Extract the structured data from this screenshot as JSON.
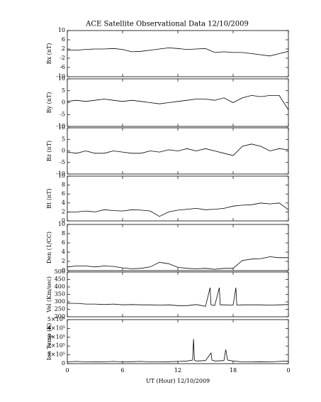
{
  "chart_data": [
    {
      "type": "line",
      "title": "ACE Satellite Observational Data   12/10/2009",
      "ylabel": "Bx (nT)",
      "x": [
        0,
        1,
        2,
        3,
        4,
        5,
        6,
        7,
        8,
        9,
        10,
        11,
        12,
        13,
        14,
        15,
        16,
        17,
        18,
        19,
        20,
        21,
        22,
        23,
        24
      ],
      "series": [
        {
          "name": "Bx",
          "color": "#000000",
          "values": [
            1.5,
            1.5,
            1.8,
            2,
            2,
            2.2,
            1.8,
            0.8,
            1,
            1.5,
            2,
            2.5,
            2.2,
            1.8,
            2,
            2.2,
            0.5,
            0.8,
            0.5,
            0.5,
            0,
            -0.5,
            -1,
            0,
            1
          ]
        }
      ],
      "xlim": [
        0,
        24
      ],
      "ylim": [
        -10,
        10
      ],
      "yticks": [
        10,
        6,
        2,
        -2,
        -6,
        -10
      ]
    },
    {
      "type": "line",
      "ylabel": "By (nT)",
      "x": [
        0,
        1,
        2,
        3,
        4,
        5,
        6,
        7,
        8,
        9,
        10,
        11,
        12,
        13,
        14,
        15,
        16,
        17,
        18,
        19,
        20,
        21,
        22,
        23,
        24
      ],
      "series": [
        {
          "name": "By",
          "color": "#000000",
          "values": [
            0.5,
            1,
            0.5,
            1,
            1.5,
            1,
            0.5,
            1,
            0.5,
            0,
            -0.5,
            0,
            0.5,
            1,
            1.5,
            1.5,
            1,
            2,
            0,
            2,
            3,
            2.5,
            3,
            3,
            -3
          ]
        }
      ],
      "xlim": [
        0,
        24
      ],
      "ylim": [
        -10,
        10
      ],
      "yticks": [
        10,
        5,
        0,
        -5,
        -10
      ]
    },
    {
      "type": "line",
      "ylabel": "Bz (nT)",
      "x": [
        0,
        1,
        2,
        3,
        4,
        5,
        6,
        7,
        8,
        9,
        10,
        11,
        12,
        13,
        14,
        15,
        16,
        17,
        18,
        19,
        20,
        21,
        22,
        23,
        24
      ],
      "series": [
        {
          "name": "Bz",
          "color": "#000000",
          "values": [
            -0.5,
            -1,
            0,
            -1,
            -1,
            0,
            -0.5,
            -1,
            -1,
            0,
            -0.5,
            0.5,
            0,
            1,
            0,
            1,
            0,
            -1,
            -2,
            2,
            3,
            2,
            0,
            1,
            0.5
          ]
        }
      ],
      "xlim": [
        0,
        24
      ],
      "ylim": [
        -10,
        10
      ],
      "yticks": [
        10,
        5,
        0,
        -5,
        -10
      ]
    },
    {
      "type": "line",
      "ylabel": "Bt (nT)",
      "x": [
        0,
        1,
        2,
        3,
        4,
        5,
        6,
        7,
        8,
        9,
        10,
        11,
        12,
        13,
        14,
        15,
        16,
        17,
        18,
        19,
        20,
        21,
        22,
        23,
        24
      ],
      "series": [
        {
          "name": "Bt",
          "color": "#000000",
          "values": [
            2,
            2,
            2.2,
            2,
            2.5,
            2.3,
            2.2,
            2.5,
            2.4,
            2.2,
            1,
            2,
            2.4,
            2.6,
            2.8,
            2.5,
            2.6,
            2.8,
            3.3,
            3.5,
            3.6,
            4,
            3.8,
            4,
            2.5
          ]
        }
      ],
      "xlim": [
        0,
        24
      ],
      "ylim": [
        0,
        10
      ],
      "yticks": [
        0,
        2,
        4,
        6,
        8,
        10
      ]
    },
    {
      "type": "line",
      "ylabel": "Den (1/CC)",
      "x": [
        0,
        1,
        2,
        3,
        4,
        5,
        6,
        7,
        8,
        9,
        10,
        11,
        12,
        13,
        14,
        15,
        16,
        17,
        18,
        19,
        20,
        21,
        22,
        23,
        24
      ],
      "series": [
        {
          "name": "Den",
          "color": "#000000",
          "values": [
            0.8,
            1,
            1,
            0.8,
            1,
            0.9,
            0.6,
            0.4,
            0.5,
            0.8,
            1.8,
            1.5,
            0.7,
            0.5,
            0.4,
            0.5,
            0.3,
            0.5,
            0.5,
            2.2,
            2.5,
            2.6,
            3,
            2.8,
            2.8
          ]
        }
      ],
      "xlim": [
        0,
        24
      ],
      "ylim": [
        0,
        10
      ],
      "yticks": [
        0,
        2,
        4,
        6,
        8,
        10
      ]
    },
    {
      "type": "line",
      "ylabel": "Vel (Km/sec)",
      "x": [
        0,
        1,
        2,
        3,
        4,
        5,
        6,
        7,
        8,
        9,
        10,
        11,
        12,
        13,
        14,
        15,
        15.5,
        15.6,
        16,
        16.5,
        16.6,
        17,
        18,
        18.3,
        18.4,
        19,
        20,
        21,
        22,
        23,
        24
      ],
      "series": [
        {
          "name": "Vel",
          "color": "#000000",
          "values": [
            290,
            290,
            285,
            285,
            282,
            285,
            280,
            282,
            280,
            280,
            278,
            280,
            275,
            275,
            282,
            270,
            395,
            280,
            275,
            395,
            280,
            280,
            278,
            395,
            278,
            280,
            280,
            280,
            278,
            280,
            282
          ]
        }
      ],
      "xlim": [
        0,
        24
      ],
      "ylim": [
        200,
        500
      ],
      "yticks": [
        200,
        250,
        300,
        350,
        400,
        450,
        500
      ]
    },
    {
      "type": "line",
      "ylabel": "Ion Temp (K)",
      "xlabel": "UT (Hour)  12/10/2009",
      "x": [
        0,
        1,
        2,
        3,
        4,
        5,
        6,
        7,
        8,
        9,
        10,
        11,
        12,
        13,
        13.6,
        13.7,
        13.8,
        14,
        15,
        15.6,
        15.7,
        16,
        17,
        17.2,
        17.4,
        18,
        19,
        20,
        21,
        22,
        23,
        24
      ],
      "series": [
        {
          "name": "Ion Temp",
          "color": "#000000",
          "values": [
            20000,
            25000,
            20000,
            22000,
            20000,
            25000,
            20000,
            22000,
            25000,
            20000,
            20000,
            22000,
            25000,
            30000,
            40000,
            280000,
            40000,
            30000,
            35000,
            120000,
            40000,
            30000,
            35000,
            160000,
            40000,
            30000,
            20000,
            20000,
            22000,
            20000,
            25000,
            30000
          ]
        }
      ],
      "xlim": [
        0,
        24
      ],
      "ylim": [
        0,
        500000
      ],
      "yticks": [
        0,
        {
          "value": 100000,
          "label": "1×10⁵"
        },
        {
          "value": 200000,
          "label": "2×10⁵"
        },
        {
          "value": 300000,
          "label": "3×10⁵"
        },
        {
          "value": 400000,
          "label": "4×10⁵"
        },
        {
          "value": 500000,
          "label": "5×10⁵"
        }
      ],
      "xticks": [
        0,
        6,
        12,
        18,
        {
          "value": 24,
          "label": "0"
        }
      ]
    }
  ]
}
